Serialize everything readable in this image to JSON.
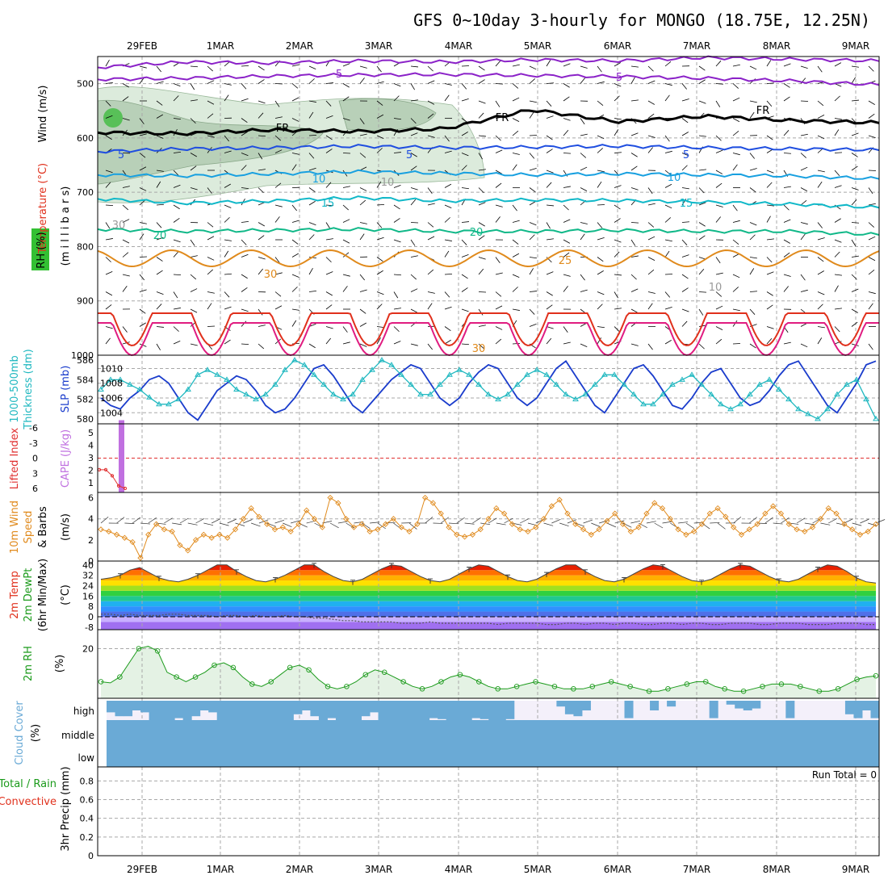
{
  "title": "GFS 0~10day 3-hourly for MONGO (18.75E, 12.25N)",
  "colors": {
    "grid": "#a8a8a8",
    "purple": "#8b22c8",
    "black": "#000000",
    "blue": "#1f4ee0",
    "lightblue": "#18a0e0",
    "cyan": "#10b8c8",
    "green": "#10b888",
    "orange": "#e08a1c",
    "red": "#e0301c",
    "magenta": "#e01c80",
    "rh": "#1a9a1a",
    "cloud": "#6aaad6",
    "slp": "#1a3ccc",
    "thick": "#20b8c0",
    "cape": "#c070e0",
    "li": "#e03030",
    "wind": "#e08a1c"
  },
  "chart_data": [
    {
      "name": "upper_air",
      "type": "contour",
      "x_labels": [
        "29FEB",
        "1MAR",
        "2MAR",
        "3MAR",
        "4MAR",
        "5MAR",
        "6MAR",
        "7MAR",
        "8MAR",
        "9MAR"
      ],
      "ylabel": [
        "Wind (m/s)",
        "Temperature (°C)",
        "RH (%)",
        "(m i l l i b a r s)"
      ],
      "y_ticks": [
        500,
        600,
        700,
        800,
        900,
        1000
      ],
      "ylim": [
        1000,
        450
      ],
      "contour_labels": [
        "5",
        "5",
        "FR",
        "FR",
        "FR",
        "5",
        "5",
        "5",
        "10",
        "10",
        "10",
        "15",
        "15",
        "20",
        "20",
        "30",
        "25",
        "30",
        "10",
        "10",
        "30",
        "10"
      ],
      "contours": [
        {
          "label": "-5",
          "series": "purple",
          "p": [
            470,
            460,
            462,
            458,
            460,
            456,
            458,
            452,
            455,
            458
          ]
        },
        {
          "label": "-5",
          "series": "purple",
          "p": [
            492,
            490,
            486,
            484,
            483,
            485,
            487,
            490,
            495,
            502
          ]
        },
        {
          "label": "FR",
          "series": "black",
          "p": [
            590,
            592,
            585,
            588,
            583,
            548,
            570,
            560,
            568,
            572
          ]
        },
        {
          "label": "5",
          "series": "blue",
          "p": [
            625,
            620,
            618,
            615,
            618,
            617,
            615,
            618,
            620,
            622
          ]
        },
        {
          "label": "10",
          "series": "lightblue",
          "p": [
            668,
            670,
            666,
            662,
            665,
            668,
            666,
            668,
            670,
            675
          ]
        },
        {
          "label": "15",
          "series": "cyan",
          "p": [
            712,
            720,
            716,
            710,
            716,
            714,
            715,
            718,
            722,
            728
          ]
        },
        {
          "label": "20",
          "series": "green",
          "p": [
            768,
            772,
            770,
            768,
            772,
            772,
            770,
            772,
            772,
            778
          ]
        }
      ]
    },
    {
      "name": "slp_thickness",
      "type": "line",
      "ylabel": [
        "1000-500mb",
        "Thickness (dm)"
      ],
      "ylabel_right": "SLP (mb)",
      "y_left_ticks": [
        580,
        582,
        584,
        586
      ],
      "y_right_ticks": [
        1004,
        1006,
        1008,
        1010
      ],
      "ylim_left": [
        579.5,
        586.5
      ],
      "ylim_right": [
        1002.5,
        1011.8
      ],
      "series": [
        {
          "name": "SLP (mb)",
          "values": [
            1006,
            1005,
            1004.5,
            1006,
            1007,
            1008.5,
            1009,
            1008,
            1006,
            1004,
            1003,
            1005,
            1007,
            1008,
            1009,
            1008.5,
            1007,
            1005,
            1004,
            1004.5,
            1006,
            1008,
            1010,
            1010.5,
            1009,
            1007,
            1005,
            1004,
            1005.5,
            1007,
            1008.5,
            1009.5,
            1010.5,
            1010,
            1008,
            1006,
            1005,
            1006,
            1008,
            1009.5,
            1010.5,
            1010,
            1008,
            1006,
            1005,
            1006,
            1008,
            1010,
            1011,
            1009,
            1007,
            1005,
            1004,
            1006,
            1008,
            1010,
            1010.5,
            1009,
            1007,
            1005,
            1004.5,
            1006,
            1008,
            1009.5,
            1010,
            1008,
            1006,
            1005,
            1005.5,
            1007,
            1009,
            1010.5,
            1011,
            1009,
            1007,
            1005,
            1004,
            1006,
            1008,
            1010.5,
            1011
          ]
        },
        {
          "name": "1000-500mb Thickness (dm)",
          "values": [
            583,
            584,
            584,
            583.5,
            583,
            582.2,
            581.5,
            581.5,
            582,
            583,
            584.5,
            585,
            584.5,
            584,
            583,
            582.5,
            582,
            582.5,
            583.5,
            585,
            586,
            585.5,
            584.5,
            583.5,
            582.5,
            582,
            582.5,
            584,
            585,
            586,
            585.5,
            584.5,
            583.5,
            582.5,
            582.5,
            583.5,
            584.5,
            585,
            584.5,
            583.5,
            582.5,
            582,
            582.5,
            583.5,
            584.5,
            585,
            584.5,
            583.5,
            582.5,
            582,
            582.5,
            583.5,
            584.5,
            584.5,
            583.5,
            582.5,
            581.5,
            581.5,
            582.5,
            583.5,
            584,
            584.5,
            583.5,
            582.5,
            581.5,
            581,
            581.5,
            582.5,
            583.5,
            584,
            583,
            582,
            581,
            580.5,
            580,
            581,
            582.5,
            583.5,
            584,
            582,
            580
          ]
        }
      ]
    },
    {
      "name": "cape_li",
      "type": "bar",
      "ylabel_left": "Lifted Index",
      "ylabel_right": "CAPE (J/kg)",
      "y_left_ticks": [
        "-6",
        "-3",
        "0",
        "3",
        "6"
      ],
      "y_right_ticks": [
        1,
        2,
        3,
        4,
        5
      ],
      "ylim_left": [
        6,
        -6
      ],
      "series": [
        {
          "name": "CAPE (J/kg)",
          "values": [
            0,
            5,
            0,
            0,
            0
          ]
        },
        {
          "name": "Lifted Index",
          "values": [
            2.3,
            2.3,
            3.5,
            5.5,
            6
          ]
        }
      ]
    },
    {
      "name": "wind10m",
      "type": "line",
      "ylabel": [
        "10m Wind",
        "Speed",
        "& Barbs",
        "(m/s)"
      ],
      "y_ticks": [
        0,
        2,
        4,
        6
      ],
      "ylim": [
        0,
        6.5
      ],
      "series": [
        {
          "name": "10m Wind Speed (m/s)",
          "values": [
            3,
            2.8,
            2.5,
            2.2,
            1.8,
            0.3,
            2.5,
            3.5,
            3,
            2.8,
            1.5,
            1,
            2,
            2.5,
            2.2,
            2.5,
            2.2,
            3,
            4,
            5,
            4.2,
            3.5,
            3,
            3.2,
            2.8,
            3.5,
            4.8,
            4,
            3.2,
            6,
            5.5,
            4,
            3.2,
            3.5,
            2.8,
            3,
            3.5,
            4,
            3.2,
            2.8,
            3.5,
            6,
            5.5,
            4.5,
            3.2,
            2.5,
            2.3,
            2.5,
            3,
            4,
            5,
            4.5,
            3.5,
            3,
            2.8,
            3.2,
            4,
            5.2,
            5.8,
            4.5,
            3.5,
            3,
            2.5,
            3,
            3.8,
            4.5,
            3.5,
            2.8,
            3.2,
            4.5,
            5.5,
            5,
            4,
            3,
            2.5,
            2.8,
            3.5,
            4.5,
            5,
            4.2,
            3.2,
            2.5,
            3,
            3.5,
            4.5,
            5.2,
            4.5,
            3.5,
            3,
            2.8,
            3.2,
            4,
            5,
            4.5,
            3.5,
            3,
            2.5,
            2.8,
            3.5
          ]
        }
      ]
    },
    {
      "name": "temp2m",
      "type": "area",
      "ylabel": [
        "2m Temp",
        "2m DewPt",
        "(6hr Min/Max)",
        "(°C)"
      ],
      "y_ticks": [
        40,
        32,
        24,
        16,
        8,
        0,
        -8
      ],
      "ylim": [
        -10,
        43
      ],
      "series": [
        {
          "name": "2m Temp",
          "values": [
            29,
            30,
            32,
            36,
            38,
            34,
            30,
            28,
            27,
            29,
            32,
            36,
            40,
            40,
            35,
            31,
            28,
            27,
            29,
            32,
            36,
            40,
            40,
            35,
            31,
            28,
            27,
            29,
            33,
            37,
            40,
            39,
            35,
            31,
            28,
            27,
            29,
            33,
            37,
            40,
            39,
            35,
            31,
            28,
            27,
            29,
            33,
            37,
            40,
            40,
            35,
            31,
            28,
            27,
            29,
            33,
            37,
            40,
            39,
            35,
            31,
            28,
            27,
            29,
            33,
            37,
            40,
            39,
            35,
            31,
            28,
            27,
            29,
            33,
            37,
            40,
            39,
            35,
            30,
            27,
            26
          ]
        },
        {
          "name": "2m DewPt",
          "values": [
            2,
            2,
            1,
            2,
            1,
            1,
            1,
            2,
            2,
            1,
            1,
            1,
            0,
            1,
            1,
            0,
            1,
            0,
            0,
            1,
            0,
            0,
            -1,
            -1,
            -2,
            -3,
            -3,
            -4,
            -4,
            -4,
            -4,
            -5,
            -5,
            -5,
            -4,
            -5,
            -5,
            -5,
            -5,
            -5,
            -5,
            -6,
            -5,
            -5,
            -5,
            -5,
            -6,
            -6,
            -5,
            -5,
            -6,
            -5,
            -5,
            -6,
            -5,
            -5,
            -6,
            -6,
            -5,
            -5,
            -6,
            -5,
            -5,
            -6,
            -6,
            -5,
            -5,
            -5,
            -6,
            -6,
            -5,
            -5,
            -5,
            -6,
            -6,
            -6,
            -5,
            -5,
            -5,
            -6,
            -6
          ]
        }
      ]
    },
    {
      "name": "rh2m",
      "type": "line",
      "ylabel": [
        "2m RH",
        "(%)"
      ],
      "y_ticks": [
        20
      ],
      "ylim": [
        -1,
        28
      ],
      "series": [
        {
          "name": "2m RH (%)",
          "values": [
            6,
            5.5,
            8,
            14,
            20,
            21,
            19,
            10,
            8,
            6,
            8,
            10,
            13,
            14,
            12,
            8,
            5,
            4,
            6,
            9,
            12,
            13,
            11,
            7,
            4,
            3,
            4,
            6,
            9,
            11,
            10,
            8,
            6,
            4,
            3,
            4,
            6,
            8,
            9,
            8,
            6,
            4,
            3,
            3,
            4,
            5,
            6,
            5,
            4,
            3,
            3,
            3,
            4,
            5,
            6,
            5,
            4,
            3,
            2,
            2,
            3,
            4,
            5,
            6,
            6,
            4,
            3,
            2,
            2,
            3,
            4,
            5,
            5,
            5,
            4,
            3,
            2,
            2,
            3,
            5,
            7,
            8,
            8.5
          ]
        }
      ]
    },
    {
      "name": "cloud",
      "type": "heatmap",
      "ylabel": [
        "Cloud Cover",
        "(%)"
      ],
      "row_labels": [
        "high",
        "middle",
        "low"
      ],
      "series": [
        {
          "name": "high cloud (%)",
          "values": [
            0.6,
            0.8,
            0.8,
            0.5,
            0.6,
            1,
            1,
            1,
            0.9,
            1,
            0.8,
            0.5,
            0.6,
            1,
            1,
            1,
            1,
            1,
            1,
            1,
            1,
            1,
            0.7,
            0.5,
            0.8,
            1,
            0.9,
            1,
            1,
            1,
            0.8,
            0.6,
            1,
            1,
            1,
            1,
            1,
            1,
            0.9,
            0.95,
            1,
            1,
            1,
            0.9,
            0.95,
            1,
            1,
            0.95,
            0,
            0,
            0,
            0,
            0,
            0.3,
            0.7,
            0.8,
            0.5,
            0,
            0,
            0,
            0,
            0.9,
            0,
            0,
            0.5,
            0,
            0.3,
            0,
            0,
            0,
            0,
            0.9,
            0,
            0.2,
            0.4,
            0.5,
            0.4,
            0,
            0,
            0,
            0.9,
            0,
            0,
            0,
            0,
            0,
            0,
            0.7,
            0.9,
            0.5,
            0.9
          ]
        }
      ]
    },
    {
      "name": "precip",
      "type": "bar",
      "ylabel": [
        "Total / Rain",
        "Convective",
        "3hr Precip (mm)"
      ],
      "y_ticks": [
        "0",
        "0.2",
        "0.4",
        "0.6",
        "0.8"
      ],
      "ylim": [
        0,
        0.95
      ],
      "run_total": "Run Total = 0",
      "series": [
        {
          "name": "3hr Precip (mm)",
          "values": []
        }
      ]
    }
  ]
}
